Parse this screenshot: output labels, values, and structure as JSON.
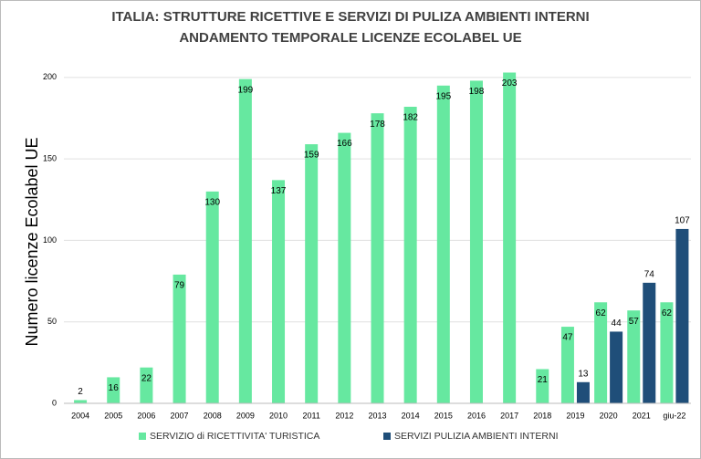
{
  "chart_data": {
    "type": "bar",
    "title": "ITALIA:  STRUTTURE RICETTIVE E SERVIZI DI PULIZA AMBIENTI INTERNI",
    "subtitle": "ANDAMENTO TEMPORALE LICENZE ECOLABEL UE",
    "y_label": "Numero licenze Ecolabel UE",
    "categories": [
      "2004",
      "2005",
      "2006",
      "2007",
      "2008",
      "2009",
      "2010",
      "2011",
      "2012",
      "2013",
      "2014",
      "2015",
      "2016",
      "2017",
      "2018",
      "2019",
      "2020",
      "2021",
      "giu-22"
    ],
    "series": [
      {
        "name": "SERVIZIO di RICETTIVITA' TURISTICA",
        "color": "#66e8a0",
        "values": [
          2,
          16,
          22,
          79,
          130,
          199,
          137,
          159,
          166,
          178,
          182,
          195,
          198,
          203,
          21,
          47,
          62,
          57,
          62
        ]
      },
      {
        "name": "SERVIZI PULIZIA AMBIENTI INTERNI",
        "color": "#1f4e79",
        "values": [
          null,
          null,
          null,
          null,
          null,
          null,
          null,
          null,
          null,
          null,
          null,
          null,
          null,
          null,
          null,
          13,
          44,
          74,
          107
        ]
      }
    ],
    "ylim": [
      0,
      210
    ],
    "yticks": [
      0,
      50,
      100,
      150,
      200
    ],
    "grid": true,
    "legend": "bottom"
  }
}
